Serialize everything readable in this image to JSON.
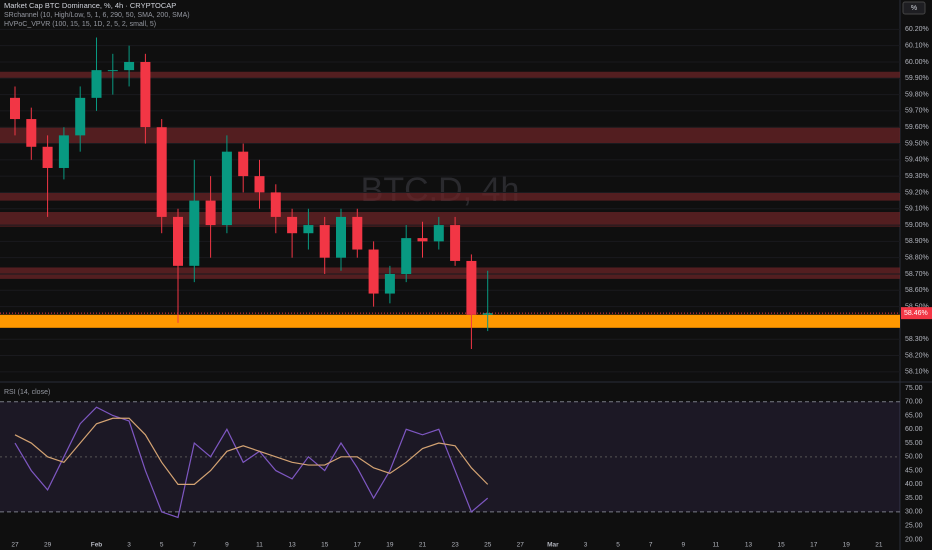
{
  "chart_data": [
    {
      "type": "candlestick",
      "title": "Market Cap BTC Dominance, %, 4h · CRYPTOCAP",
      "indicators": [
        "SRchannel (10, High/Low, 5, 1, 6, 290, 50, SMA, 200, SMA)",
        "HVPoC_VPVR (100, 15, 15, 1D, 2, 5, 2, small, 5)"
      ],
      "watermark": "BTC.D, 4h",
      "scale_button": "%",
      "categories": [
        "27",
        null,
        "29",
        null,
        null,
        "Feb",
        null,
        "3",
        null,
        "5",
        null,
        "7",
        null,
        "9",
        null,
        "11",
        null,
        "13",
        null,
        "15",
        null,
        "17",
        null,
        "19",
        null,
        "21",
        null,
        "23",
        null,
        "25",
        null,
        "27",
        null,
        "Mar",
        null,
        "3",
        null,
        "5",
        null,
        "7",
        null,
        "9",
        null,
        "11",
        null,
        "13",
        null,
        "15",
        null,
        "17",
        null,
        "19",
        null,
        "21"
      ],
      "open": [
        59.78,
        59.65,
        59.48,
        59.35,
        59.55,
        59.78,
        59.95,
        59.95,
        60.0,
        59.6,
        59.05,
        58.75,
        59.15,
        59.0,
        59.45,
        59.3,
        59.2,
        59.05,
        58.95,
        59.0,
        58.8,
        59.05,
        58.85,
        58.58,
        58.7,
        58.92,
        58.9,
        59.0,
        58.78,
        58.45,
        null,
        null,
        null,
        null,
        null,
        null,
        null,
        null,
        null,
        null,
        null,
        null,
        null,
        null,
        null,
        null,
        null,
        null,
        null,
        null,
        null,
        null,
        null,
        null
      ],
      "high": [
        59.85,
        59.72,
        59.55,
        59.6,
        59.85,
        60.15,
        60.05,
        60.1,
        60.05,
        59.65,
        59.1,
        59.4,
        59.3,
        59.55,
        59.5,
        59.4,
        59.25,
        59.1,
        59.1,
        59.05,
        59.1,
        59.1,
        58.9,
        58.75,
        59.0,
        59.02,
        59.05,
        59.05,
        58.82,
        58.72,
        null,
        null,
        null,
        null,
        null,
        null,
        null,
        null,
        null,
        null,
        null,
        null,
        null,
        null,
        null,
        null,
        null,
        null,
        null,
        null,
        null,
        null,
        null,
        null
      ],
      "low": [
        59.55,
        59.4,
        59.05,
        59.28,
        59.45,
        59.7,
        59.8,
        59.85,
        59.5,
        58.95,
        58.4,
        58.65,
        58.8,
        58.95,
        59.2,
        59.1,
        58.95,
        58.8,
        58.85,
        58.7,
        58.72,
        58.8,
        58.5,
        58.52,
        58.65,
        58.8,
        58.85,
        58.75,
        58.24,
        58.35,
        null,
        null,
        null,
        null,
        null,
        null,
        null,
        null,
        null,
        null,
        null,
        null,
        null,
        null,
        null,
        null,
        null,
        null,
        null,
        null,
        null,
        null,
        null,
        null
      ],
      "close": [
        59.65,
        59.48,
        59.35,
        59.55,
        59.78,
        59.95,
        59.95,
        60.0,
        59.6,
        59.05,
        58.75,
        59.15,
        59.0,
        59.45,
        59.3,
        59.2,
        59.05,
        58.95,
        59.0,
        58.8,
        59.05,
        58.85,
        58.58,
        58.7,
        58.92,
        58.9,
        59.0,
        58.78,
        58.45,
        58.46,
        null,
        null,
        null,
        null,
        null,
        null,
        null,
        null,
        null,
        null,
        null,
        null,
        null,
        null,
        null,
        null,
        null,
        null,
        null,
        null,
        null,
        null,
        null,
        null
      ],
      "up_color": "#089981",
      "down_color": "#f23645",
      "zones": [
        {
          "low": 59.9,
          "high": 59.94,
          "color": "#6b2427"
        },
        {
          "low": 59.5,
          "high": 59.6,
          "color": "#6b2427"
        },
        {
          "low": 59.15,
          "high": 59.2,
          "color": "#6b2427"
        },
        {
          "low": 58.99,
          "high": 59.08,
          "color": "#6b2427"
        },
        {
          "low": 58.67,
          "high": 58.74,
          "color": "#6b2427"
        },
        {
          "low": 58.37,
          "high": 58.45,
          "color": "#ff9800"
        }
      ],
      "last_price": {
        "value": 58.46,
        "label": "58.46%"
      },
      "ylim": [
        58.05,
        60.38
      ],
      "yticks": [
        {
          "value": 60.2,
          "label": "60.20%"
        },
        {
          "value": 60.1,
          "label": "60.10%"
        },
        {
          "value": 60.0,
          "label": "60.00%"
        },
        {
          "value": 59.9,
          "label": "59.90%"
        },
        {
          "value": 59.8,
          "label": "59.80%"
        },
        {
          "value": 59.7,
          "label": "59.70%"
        },
        {
          "value": 59.6,
          "label": "59.60%"
        },
        {
          "value": 59.5,
          "label": "59.50%"
        },
        {
          "value": 59.4,
          "label": "59.40%"
        },
        {
          "value": 59.3,
          "label": "59.30%"
        },
        {
          "value": 59.2,
          "label": "59.20%"
        },
        {
          "value": 59.1,
          "label": "59.10%"
        },
        {
          "value": 59.0,
          "label": "59.00%"
        },
        {
          "value": 58.9,
          "label": "58.90%"
        },
        {
          "value": 58.8,
          "label": "58.80%"
        },
        {
          "value": 58.7,
          "label": "58.70%"
        },
        {
          "value": 58.6,
          "label": "58.60%"
        },
        {
          "value": 58.5,
          "label": "58.50%"
        },
        {
          "value": 58.3,
          "label": "58.30%"
        },
        {
          "value": 58.2,
          "label": "58.20%"
        },
        {
          "value": 58.1,
          "label": "58.10%"
        }
      ],
      "grid": true
    },
    {
      "type": "line",
      "title": "RSI (14, close)",
      "series": [
        {
          "name": "RSI",
          "color": "#7e57c2",
          "values": [
            55,
            45,
            38,
            50,
            62,
            68,
            65,
            63,
            45,
            30,
            28,
            55,
            50,
            60,
            48,
            52,
            45,
            42,
            50,
            45,
            55,
            46,
            35,
            45,
            60,
            58,
            60,
            45,
            30,
            35,
            null,
            null,
            null,
            null,
            null,
            null,
            null,
            null,
            null,
            null,
            null,
            null,
            null,
            null,
            null,
            null,
            null,
            null,
            null,
            null,
            null,
            null,
            null,
            null
          ]
        },
        {
          "name": "RSI-based MA",
          "color": "#d4a373",
          "values": [
            58,
            55,
            50,
            48,
            55,
            62,
            64,
            64,
            58,
            48,
            40,
            40,
            45,
            52,
            54,
            52,
            50,
            48,
            47,
            47,
            50,
            50,
            46,
            44,
            48,
            53,
            55,
            54,
            46,
            40,
            null,
            null,
            null,
            null,
            null,
            null,
            null,
            null,
            null,
            null,
            null,
            null,
            null,
            null,
            null,
            null,
            null,
            null,
            null,
            null,
            null,
            null,
            null,
            null
          ]
        }
      ],
      "band": [
        30,
        70
      ],
      "midline": 50,
      "ylim": [
        19.8,
        76.8
      ],
      "yticks": [
        {
          "value": 75,
          "label": "75.00"
        },
        {
          "value": 70,
          "label": "70.00"
        },
        {
          "value": 65,
          "label": "65.00"
        },
        {
          "value": 60,
          "label": "60.00"
        },
        {
          "value": 55,
          "label": "55.00"
        },
        {
          "value": 50,
          "label": "50.00"
        },
        {
          "value": 45,
          "label": "45.00"
        },
        {
          "value": 40,
          "label": "40.00"
        },
        {
          "value": 35,
          "label": "35.00"
        },
        {
          "value": 30,
          "label": "30.00"
        },
        {
          "value": 25,
          "label": "25.00"
        },
        {
          "value": 20,
          "label": "20.00"
        }
      ]
    }
  ]
}
